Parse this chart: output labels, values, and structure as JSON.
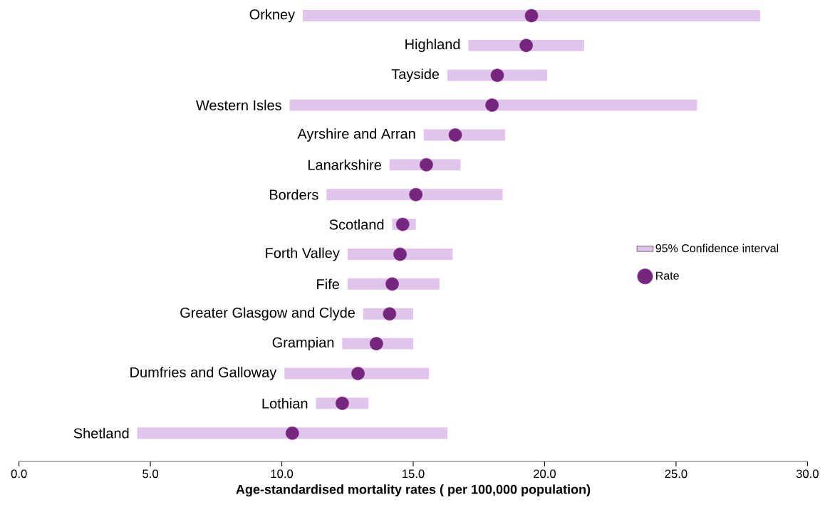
{
  "chart_data": {
    "type": "bar",
    "orientation": "horizontal",
    "xlabel": "Age-standardised mortality rates ( per 100,000 population)",
    "categories": [
      "Orkney",
      "Highland",
      "Tayside",
      "Western Isles",
      "Ayrshire and Arran",
      "Lanarkshire",
      "Borders",
      "Scotland",
      "Forth Valley",
      "Fife",
      "Greater Glasgow and Clyde",
      "Grampian",
      "Dumfries and Galloway",
      "Lothian",
      "Shetland"
    ],
    "series": [
      {
        "name": "95% Confidence interval",
        "color": "#e1c4ec",
        "base": [
          10.8,
          17.1,
          16.3,
          10.3,
          15.4,
          14.1,
          11.7,
          14.2,
          12.5,
          12.5,
          13.1,
          12.3,
          10.1,
          11.3,
          4.5
        ],
        "values": [
          17.4,
          4.4,
          3.8,
          15.5,
          3.1,
          2.7,
          6.7,
          0.9,
          4.0,
          3.5,
          1.9,
          2.7,
          5.5,
          2.0,
          11.8
        ]
      },
      {
        "name": "Rate",
        "type": "scatter",
        "color": "#76267f",
        "values": [
          19.5,
          19.3,
          18.2,
          18.0,
          16.6,
          15.5,
          15.1,
          14.6,
          14.5,
          14.2,
          14.1,
          13.6,
          12.9,
          12.3,
          10.4
        ]
      }
    ],
    "marker": "circle",
    "legend": "right",
    "grid": false,
    "xlim": [
      0,
      30
    ],
    "xticks": [
      {
        "value": 0,
        "label": "0.0"
      },
      {
        "value": 5,
        "label": "5.0"
      },
      {
        "value": 10,
        "label": "10.0"
      },
      {
        "value": 15,
        "label": "15.0"
      },
      {
        "value": 20,
        "label": "20.0"
      },
      {
        "value": 25,
        "label": "25.0"
      },
      {
        "value": 30,
        "label": "30.0"
      }
    ]
  }
}
